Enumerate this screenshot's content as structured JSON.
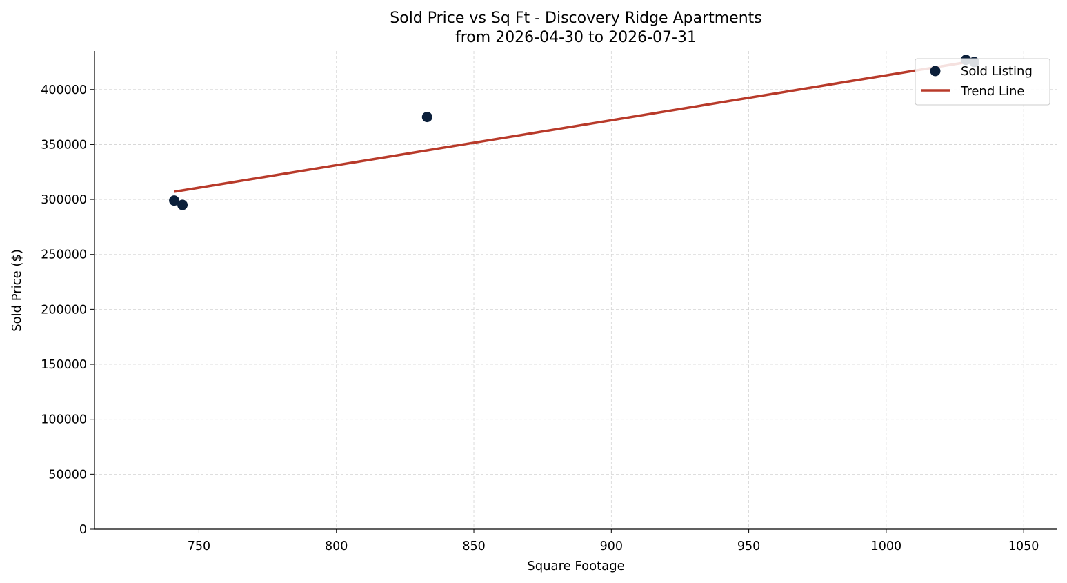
{
  "chart_data": {
    "type": "scatter",
    "title": "Sold Price vs Sq Ft - Discovery Ridge Apartments",
    "subtitle": "from 2026-04-30 to 2026-07-31",
    "xlabel": "Square Footage",
    "ylabel": "Sold Price ($)",
    "xlim": [
      712,
      1062
    ],
    "ylim": [
      0,
      435000
    ],
    "xticks": [
      750,
      800,
      850,
      900,
      950,
      1000,
      1050
    ],
    "yticks": [
      0,
      50000,
      100000,
      150000,
      200000,
      250000,
      300000,
      350000,
      400000
    ],
    "grid": true,
    "legend_position": "top-right",
    "series": [
      {
        "name": "Sold Listing",
        "kind": "scatter",
        "color": "#0b1f3a",
        "points": [
          {
            "x": 741,
            "y": 299000
          },
          {
            "x": 744,
            "y": 295000
          },
          {
            "x": 833,
            "y": 375000
          },
          {
            "x": 1029,
            "y": 427000
          },
          {
            "x": 1032,
            "y": 425000
          }
        ]
      },
      {
        "name": "Trend Line",
        "kind": "line",
        "color": "#b83a2a",
        "points": [
          {
            "x": 741,
            "y": 307000
          },
          {
            "x": 1032,
            "y": 426000
          }
        ]
      }
    ]
  }
}
